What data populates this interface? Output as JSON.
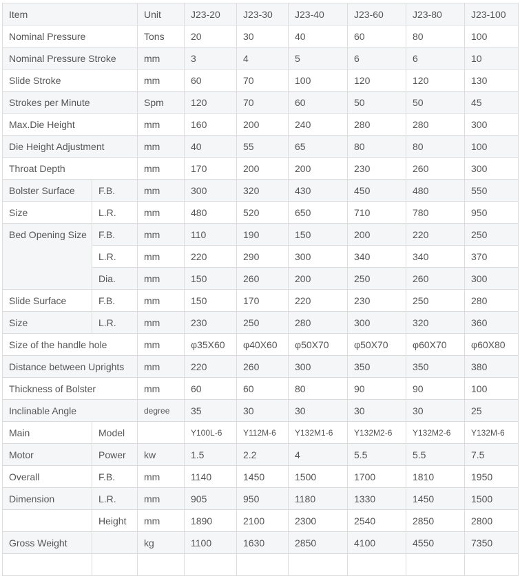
{
  "table": {
    "rows": [
      [
        {
          "t": "Item",
          "cs": 2
        },
        {
          "t": "Unit"
        },
        {
          "t": "J23-20"
        },
        {
          "t": "J23-30"
        },
        {
          "t": "J23-40"
        },
        {
          "t": "J23-60"
        },
        {
          "t": "J23-80"
        },
        {
          "t": "J23-100"
        }
      ],
      [
        {
          "t": "Nominal Pressure",
          "cs": 2
        },
        {
          "t": "Tons"
        },
        {
          "t": "20"
        },
        {
          "t": "30"
        },
        {
          "t": "40"
        },
        {
          "t": "60"
        },
        {
          "t": "80"
        },
        {
          "t": "100"
        }
      ],
      [
        {
          "t": "Nominal Pressure Stroke",
          "cs": 2
        },
        {
          "t": "mm"
        },
        {
          "t": "3"
        },
        {
          "t": "4"
        },
        {
          "t": "5"
        },
        {
          "t": "6"
        },
        {
          "t": "6"
        },
        {
          "t": "10"
        }
      ],
      [
        {
          "t": "Slide Stroke",
          "cs": 2
        },
        {
          "t": "mm"
        },
        {
          "t": "60"
        },
        {
          "t": "70"
        },
        {
          "t": "100"
        },
        {
          "t": "120"
        },
        {
          "t": "120"
        },
        {
          "t": "130"
        }
      ],
      [
        {
          "t": "Strokes per Minute",
          "cs": 2
        },
        {
          "t": "Spm"
        },
        {
          "t": "120"
        },
        {
          "t": "70"
        },
        {
          "t": "60"
        },
        {
          "t": "50"
        },
        {
          "t": "50"
        },
        {
          "t": "45"
        }
      ],
      [
        {
          "t": "Max.Die Height",
          "cs": 2
        },
        {
          "t": "mm"
        },
        {
          "t": "160"
        },
        {
          "t": "200"
        },
        {
          "t": "240"
        },
        {
          "t": "280"
        },
        {
          "t": "280"
        },
        {
          "t": "300"
        }
      ],
      [
        {
          "t": "Die Height Adjustment",
          "cs": 2
        },
        {
          "t": "mm"
        },
        {
          "t": "40"
        },
        {
          "t": "55"
        },
        {
          "t": "65"
        },
        {
          "t": "80"
        },
        {
          "t": "80"
        },
        {
          "t": "100"
        }
      ],
      [
        {
          "t": "Throat Depth",
          "cs": 2
        },
        {
          "t": "mm"
        },
        {
          "t": "170"
        },
        {
          "t": "200"
        },
        {
          "t": "200"
        },
        {
          "t": "230"
        },
        {
          "t": "260"
        },
        {
          "t": "300"
        }
      ],
      [
        {
          "t": "Bolster Surface"
        },
        {
          "t": "F.B."
        },
        {
          "t": "mm"
        },
        {
          "t": "300"
        },
        {
          "t": "320"
        },
        {
          "t": "430"
        },
        {
          "t": "450"
        },
        {
          "t": "480"
        },
        {
          "t": "550"
        }
      ],
      [
        {
          "t": "Size"
        },
        {
          "t": "L.R."
        },
        {
          "t": "mm"
        },
        {
          "t": "480"
        },
        {
          "t": "520"
        },
        {
          "t": "650"
        },
        {
          "t": "710"
        },
        {
          "t": "780"
        },
        {
          "t": "950"
        }
      ],
      [
        {
          "t": "Bed Opening Size",
          "rs": 3
        },
        {
          "t": "F.B."
        },
        {
          "t": "mm"
        },
        {
          "t": "110"
        },
        {
          "t": "190"
        },
        {
          "t": "150"
        },
        {
          "t": "200"
        },
        {
          "t": "220"
        },
        {
          "t": "250"
        }
      ],
      [
        {
          "t": "L.R."
        },
        {
          "t": "mm"
        },
        {
          "t": "220"
        },
        {
          "t": "290"
        },
        {
          "t": "300"
        },
        {
          "t": "340"
        },
        {
          "t": "340"
        },
        {
          "t": "370"
        }
      ],
      [
        {
          "t": "Dia."
        },
        {
          "t": "mm"
        },
        {
          "t": "150"
        },
        {
          "t": "260"
        },
        {
          "t": "200"
        },
        {
          "t": "250"
        },
        {
          "t": "260"
        },
        {
          "t": "300"
        }
      ],
      [
        {
          "t": "Slide Surface"
        },
        {
          "t": "F.B."
        },
        {
          "t": "mm"
        },
        {
          "t": "150"
        },
        {
          "t": "170"
        },
        {
          "t": "220"
        },
        {
          "t": "230"
        },
        {
          "t": "250"
        },
        {
          "t": "280"
        }
      ],
      [
        {
          "t": "Size"
        },
        {
          "t": "L.R."
        },
        {
          "t": "mm"
        },
        {
          "t": "230"
        },
        {
          "t": "250"
        },
        {
          "t": "280"
        },
        {
          "t": "300"
        },
        {
          "t": "320"
        },
        {
          "t": "360"
        }
      ],
      [
        {
          "t": "Size of the handle hole",
          "cs": 2
        },
        {
          "t": "mm"
        },
        {
          "t": "φ35X60"
        },
        {
          "t": "φ40X60"
        },
        {
          "t": "φ50X70"
        },
        {
          "t": "φ50X70"
        },
        {
          "t": "φ60X70"
        },
        {
          "t": "φ60X80"
        }
      ],
      [
        {
          "t": "Distance between Uprights",
          "cs": 2
        },
        {
          "t": "mm"
        },
        {
          "t": "220"
        },
        {
          "t": "260"
        },
        {
          "t": "300"
        },
        {
          "t": "350"
        },
        {
          "t": "350"
        },
        {
          "t": "380"
        }
      ],
      [
        {
          "t": "Thickness of Bolster",
          "cs": 2
        },
        {
          "t": "mm"
        },
        {
          "t": "60"
        },
        {
          "t": "60"
        },
        {
          "t": "80"
        },
        {
          "t": "90"
        },
        {
          "t": "90"
        },
        {
          "t": "100"
        }
      ],
      [
        {
          "t": "Inclinable Angle",
          "cs": 2
        },
        {
          "t": "degree",
          "sm": true
        },
        {
          "t": "35"
        },
        {
          "t": "30"
        },
        {
          "t": "30"
        },
        {
          "t": "30"
        },
        {
          "t": "30"
        },
        {
          "t": "25"
        }
      ],
      [
        {
          "t": "Main"
        },
        {
          "t": "Model"
        },
        {
          "t": ""
        },
        {
          "t": "Y100L-6",
          "sm": true
        },
        {
          "t": "Y112M-6",
          "sm": true
        },
        {
          "t": "Y132M1-6",
          "sm": true
        },
        {
          "t": "Y132M2-6",
          "sm": true
        },
        {
          "t": "Y132M2-6",
          "sm": true
        },
        {
          "t": "Y132M-6",
          "sm": true
        }
      ],
      [
        {
          "t": "Motor"
        },
        {
          "t": "Power"
        },
        {
          "t": "kw"
        },
        {
          "t": "1.5"
        },
        {
          "t": "2.2"
        },
        {
          "t": "4"
        },
        {
          "t": "5.5"
        },
        {
          "t": "5.5"
        },
        {
          "t": "7.5"
        }
      ],
      [
        {
          "t": "Overall"
        },
        {
          "t": "F.B."
        },
        {
          "t": "mm"
        },
        {
          "t": "1140"
        },
        {
          "t": "1450"
        },
        {
          "t": "1500"
        },
        {
          "t": "1700"
        },
        {
          "t": "1810"
        },
        {
          "t": "1950"
        }
      ],
      [
        {
          "t": "Dimension"
        },
        {
          "t": "L.R."
        },
        {
          "t": "mm"
        },
        {
          "t": "905"
        },
        {
          "t": "950"
        },
        {
          "t": "1180"
        },
        {
          "t": "1330"
        },
        {
          "t": "1450"
        },
        {
          "t": "1500"
        }
      ],
      [
        {
          "t": ""
        },
        {
          "t": "Height"
        },
        {
          "t": "mm"
        },
        {
          "t": "1890"
        },
        {
          "t": "2100"
        },
        {
          "t": "2300"
        },
        {
          "t": "2540"
        },
        {
          "t": "2850"
        },
        {
          "t": "2800"
        }
      ],
      [
        {
          "t": "Gross Weight"
        },
        {
          "t": ""
        },
        {
          "t": "kg"
        },
        {
          "t": "1100"
        },
        {
          "t": "1630"
        },
        {
          "t": "2850"
        },
        {
          "t": "4100"
        },
        {
          "t": "4550"
        },
        {
          "t": "7350"
        }
      ],
      [
        {
          "t": ""
        },
        {
          "t": ""
        },
        {
          "t": ""
        },
        {
          "t": ""
        },
        {
          "t": ""
        },
        {
          "t": ""
        },
        {
          "t": ""
        },
        {
          "t": ""
        },
        {
          "t": ""
        }
      ]
    ]
  }
}
